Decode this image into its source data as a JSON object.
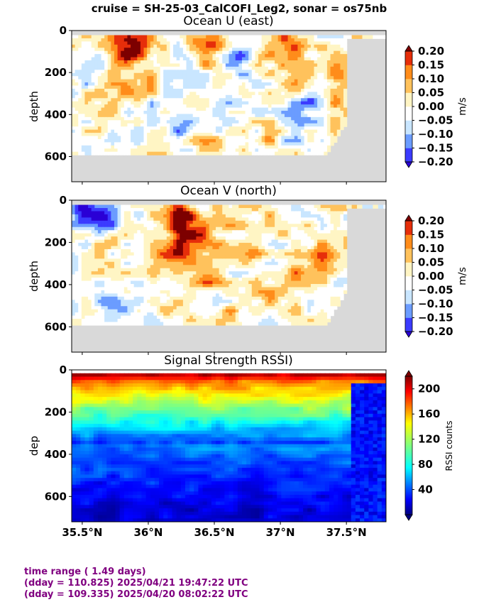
{
  "suptitle": "cruise = SH-25-03_CalCOFI_Leg2,  sonar = os75nb",
  "colors": {
    "footer_text": "#800080",
    "land_mask": "#d9d9d9"
  },
  "footer": {
    "line1": "time range ( 1.49 days)",
    "line2": "(dday = 110.825) 2025/04/21 19:47:22 UTC",
    "line3": "(dday = 109.335) 2025/04/20 08:02:22 UTC"
  },
  "chart_data": [
    {
      "type": "heatmap",
      "title": "Ocean U (east)",
      "ylabel": "depth",
      "y_ticks": [
        "0",
        "200",
        "400",
        "600"
      ],
      "ylim": [
        720,
        0
      ],
      "xlim": [
        35.42,
        37.8
      ],
      "colorbar": {
        "label": "m/s",
        "ticks": [
          "0.20",
          "0.15",
          "0.10",
          "0.05",
          "0.00",
          "−0.05",
          "−0.10",
          "−0.15",
          "−0.20"
        ],
        "levels": [
          -0.2,
          -0.15,
          -0.1,
          -0.05,
          0,
          0.05,
          0.1,
          0.15,
          0.2
        ],
        "extend": "both"
      },
      "bottom_depth_main": 585,
      "shallow_region": {
        "from_lat": 37.5,
        "bottom_depth": 40
      },
      "features": [
        {
          "lat": 35.8,
          "depth": 90,
          "value": 0.18
        },
        {
          "lat": 35.95,
          "depth": 60,
          "value": 0.12
        },
        {
          "lat": 36.45,
          "depth": 70,
          "value": 0.15
        },
        {
          "lat": 36.7,
          "depth": 100,
          "value": -0.15
        },
        {
          "lat": 37.1,
          "depth": 50,
          "value": 0.12
        },
        {
          "lat": 37.25,
          "depth": 300,
          "value": -0.12
        },
        {
          "lat": 37.45,
          "depth": 250,
          "value": 0.1
        },
        {
          "lat": 35.75,
          "depth": 350,
          "value": 0.06
        },
        {
          "lat": 36.25,
          "depth": 450,
          "value": -0.1
        },
        {
          "lat": 36.6,
          "depth": 400,
          "value": -0.08
        },
        {
          "lat": 37.1,
          "depth": 500,
          "value": -0.05
        }
      ]
    },
    {
      "type": "heatmap",
      "title": "Ocean V (north)",
      "ylabel": "depth",
      "y_ticks": [
        "0",
        "200",
        "400",
        "600"
      ],
      "ylim": [
        720,
        0
      ],
      "xlim": [
        35.42,
        37.8
      ],
      "colorbar": {
        "label": "m/s",
        "ticks": [
          "0.20",
          "0.15",
          "0.10",
          "0.05",
          "0.00",
          "−0.05",
          "−0.10",
          "−0.15",
          "−0.20"
        ],
        "levels": [
          -0.2,
          -0.15,
          -0.1,
          -0.05,
          0,
          0.05,
          0.1,
          0.15,
          0.2
        ],
        "extend": "both"
      },
      "bottom_depth_main": 580,
      "shallow_region": {
        "from_lat": 37.5,
        "bottom_depth": 40
      },
      "features": [
        {
          "lat": 35.5,
          "depth": 50,
          "value": -0.2
        },
        {
          "lat": 35.7,
          "depth": 80,
          "value": -0.15
        },
        {
          "lat": 36.25,
          "depth": 60,
          "value": 0.2
        },
        {
          "lat": 36.3,
          "depth": 200,
          "value": 0.15
        },
        {
          "lat": 36.1,
          "depth": 300,
          "value": 0.1
        },
        {
          "lat": 36.5,
          "depth": 300,
          "value": 0.1
        },
        {
          "lat": 36.8,
          "depth": 250,
          "value": 0.1
        },
        {
          "lat": 37.3,
          "depth": 300,
          "value": 0.15
        },
        {
          "lat": 37.1,
          "depth": 350,
          "value": 0.08
        },
        {
          "lat": 35.6,
          "depth": 300,
          "value": -0.05
        },
        {
          "lat": 35.7,
          "depth": 450,
          "value": -0.08
        }
      ]
    },
    {
      "type": "heatmap",
      "title": "Signal Strength RSSI)",
      "ylabel": "dep",
      "y_ticks": [
        "0",
        "200",
        "400",
        "600"
      ],
      "ylim": [
        720,
        0
      ],
      "xlim": [
        35.42,
        37.8
      ],
      "x_ticks": [
        "35.5°N",
        "36°N",
        "36.5°N",
        "37°N",
        "37.5°N"
      ],
      "x_tick_values": [
        35.5,
        36.0,
        36.5,
        37.0,
        37.5
      ],
      "colorbar": {
        "label": "RSSI counts",
        "ticks": [
          "200",
          "160",
          "120",
          "80",
          "40"
        ],
        "range": [
          0,
          220
        ],
        "extend": "both"
      },
      "profile": {
        "surface_value": 205,
        "mid_value": 80,
        "deep_value": 20
      },
      "shallow_region": {
        "from_lat": 37.55,
        "value": 30
      }
    }
  ]
}
